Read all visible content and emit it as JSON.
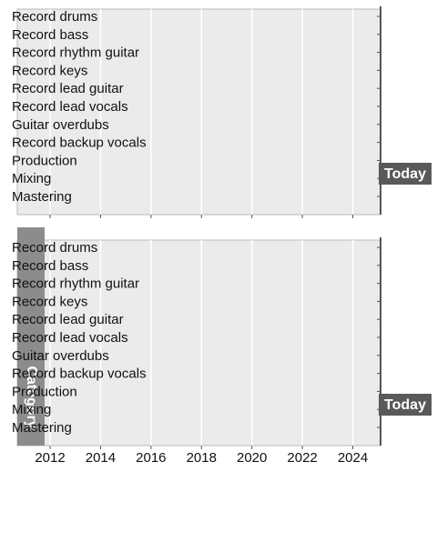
{
  "chart_data": {
    "type": "bar",
    "panels": 2,
    "categories": [
      "Record drums",
      "Record bass",
      "Record rhythm guitar",
      "Record keys",
      "Record lead guitar",
      "Record lead vocals",
      "Guitar overdubs",
      "Record backup vocals",
      "Production",
      "Mixing",
      "Mastering"
    ],
    "xlim": [
      2010.7,
      2025.1
    ],
    "xticks": [
      2012,
      2014,
      2016,
      2018,
      2020,
      2022,
      2024
    ],
    "xtick_labels": [
      "2012",
      "2014",
      "2016",
      "2018",
      "2020",
      "2022",
      "2024"
    ],
    "today_label": "Today",
    "strip_label": "Category",
    "grid": true,
    "colors": {
      "panel_bg": "#ebebeb",
      "grid": "#ffffff",
      "strip": "#8c8c8c",
      "today_box": "#595959",
      "axis": "#555555"
    }
  }
}
